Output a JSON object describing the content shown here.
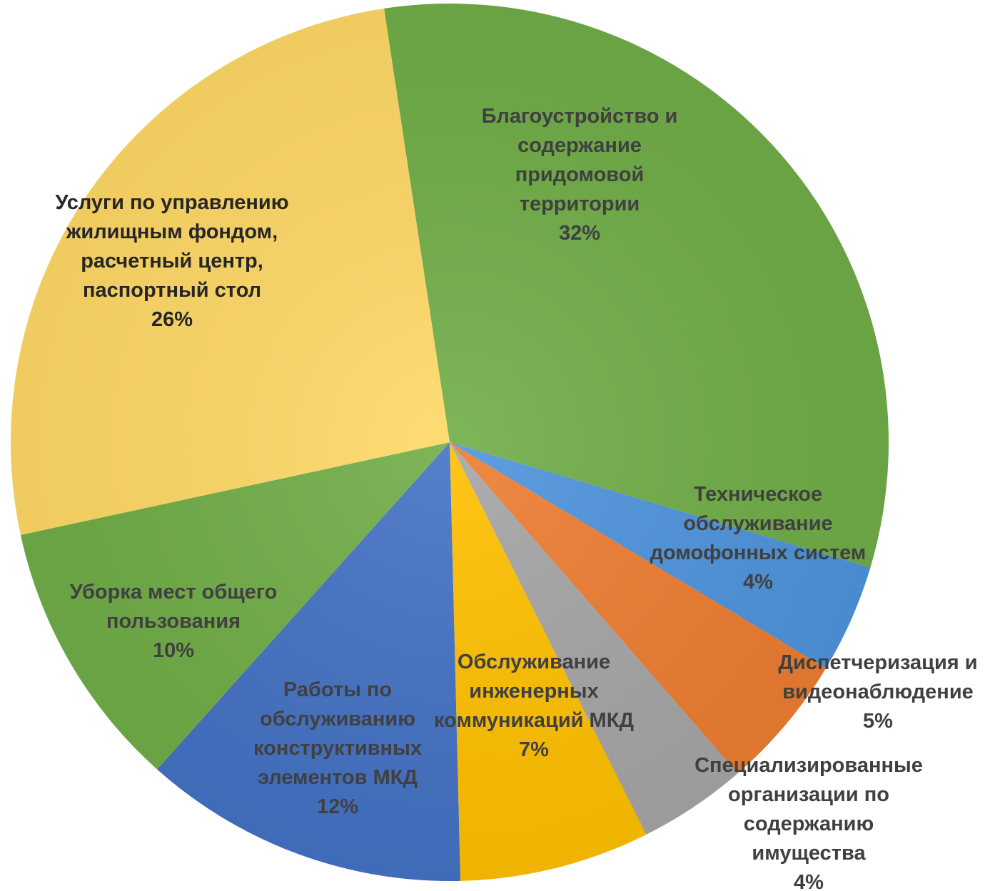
{
  "chart_data": {
    "type": "pie",
    "title": "",
    "legend": "none",
    "slices": [
      {
        "label_lines": [
          "Благоустройство и",
          "содержание",
          "придомовой",
          "территории"
        ],
        "percent_label": "32%",
        "value": 32,
        "color": "#70AD47",
        "label_color": "#404040"
      },
      {
        "label_lines": [
          "Техническое",
          "обслуживание",
          "домофонных систем"
        ],
        "percent_label": "4%",
        "value": 4,
        "color": "#4E94DC",
        "label_color": "#404040"
      },
      {
        "label_lines": [
          "Диспетчеризация и",
          "видеонаблюдение"
        ],
        "percent_label": "5%",
        "value": 5,
        "color": "#ED7D31",
        "label_color": "#404040"
      },
      {
        "label_lines": [
          "Специализированные",
          "организации по",
          "содержанию",
          "имущества"
        ],
        "percent_label": "4%",
        "value": 4,
        "color": "#A5A5A5",
        "label_color": "#404040"
      },
      {
        "label_lines": [
          "Обслуживание",
          "инженерных",
          "коммуникаций МКД"
        ],
        "percent_label": "7%",
        "value": 7,
        "color": "#FFC000",
        "label_color": "#404040"
      },
      {
        "label_lines": [
          "Работы по",
          "обслуживанию",
          "конструктивных",
          "элементов МКД"
        ],
        "percent_label": "12%",
        "value": 12,
        "color": "#4472C4",
        "label_color": "#404040"
      },
      {
        "label_lines": [
          "Уборка мест общего",
          "пользования"
        ],
        "percent_label": "10%",
        "value": 10,
        "color": "#70AD47",
        "label_color": "#404040"
      },
      {
        "label_lines": [
          "Услуги по управлению",
          "жилищным фондом,",
          "расчетный центр,",
          "паспортный стол"
        ],
        "percent_label": "26%",
        "value": 26,
        "color": "#FFD966",
        "label_color": "#262626"
      }
    ]
  }
}
